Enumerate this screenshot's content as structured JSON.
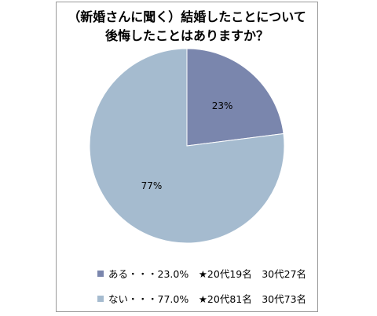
{
  "chart_data": {
    "type": "pie",
    "title_line1": "（新婚さんに聞く）結婚したことについて",
    "title_line2": "後悔したことはありますか？",
    "slices": [
      {
        "name": "ある",
        "value": 23,
        "label": "23%",
        "color": "#7a86ad",
        "legend": "ある・・・23.0%　★20代19名　30代27名"
      },
      {
        "name": "ない",
        "value": 77,
        "label": "77%",
        "color": "#a5bbcf",
        "legend": "ない・・・77.0%　★20代81名　30代73名"
      }
    ],
    "legend_position": "bottom"
  }
}
